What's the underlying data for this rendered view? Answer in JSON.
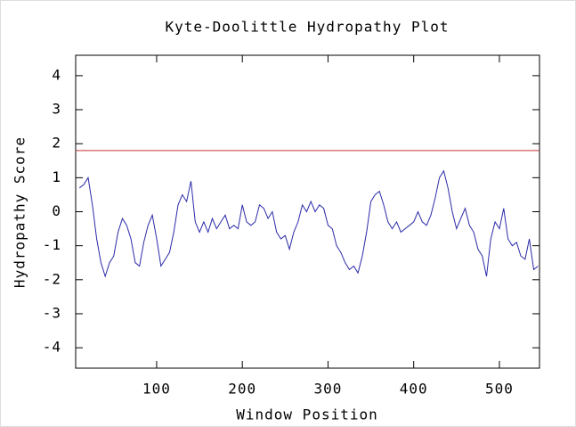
{
  "chart_data": {
    "type": "line",
    "title": "Kyte-Doolittle Hydropathy Plot",
    "xlabel": "Window Position",
    "ylabel": "Hydropathy Score",
    "x": [
      10,
      15,
      20,
      25,
      30,
      35,
      40,
      45,
      50,
      55,
      60,
      65,
      70,
      75,
      80,
      85,
      90,
      95,
      100,
      105,
      110,
      115,
      120,
      125,
      130,
      135,
      140,
      145,
      150,
      155,
      160,
      165,
      170,
      175,
      180,
      185,
      190,
      195,
      200,
      205,
      210,
      215,
      220,
      225,
      230,
      235,
      240,
      245,
      250,
      255,
      260,
      265,
      270,
      275,
      280,
      285,
      290,
      295,
      300,
      305,
      310,
      315,
      320,
      325,
      330,
      335,
      340,
      345,
      350,
      355,
      360,
      365,
      370,
      375,
      380,
      385,
      390,
      395,
      400,
      405,
      410,
      415,
      420,
      425,
      430,
      435,
      440,
      445,
      450,
      455,
      460,
      465,
      470,
      475,
      480,
      485,
      490,
      495,
      500,
      505,
      510,
      515,
      520,
      525,
      530,
      535,
      540,
      545
    ],
    "series": [
      {
        "color": "#2a2aa8",
        "values": [
          0.7,
          0.8,
          1.0,
          0.2,
          -0.8,
          -1.5,
          -1.9,
          -1.5,
          -1.3,
          -0.6,
          -0.2,
          -0.4,
          -0.8,
          -1.5,
          -1.6,
          -0.9,
          -0.4,
          -0.1,
          -0.8,
          -1.6,
          -1.4,
          -1.2,
          -0.6,
          0.2,
          0.5,
          0.3,
          0.9,
          -0.3,
          -0.6,
          -0.3,
          -0.6,
          -0.2,
          -0.5,
          -0.3,
          -0.1,
          -0.5,
          -0.4,
          -0.5,
          0.2,
          -0.3,
          -0.4,
          -0.3,
          0.2,
          0.1,
          -0.2,
          0.0,
          -0.6,
          -0.8,
          -0.7,
          -1.1,
          -0.6,
          -0.3,
          0.2,
          0.0,
          0.3,
          0.0,
          0.2,
          0.1,
          -0.4,
          -0.5,
          -1.0,
          -1.2,
          -1.5,
          -1.7,
          -1.6,
          -1.8,
          -1.3,
          -0.6,
          0.3,
          0.5,
          0.6,
          0.2,
          -0.3,
          -0.5,
          -0.3,
          -0.6,
          -0.5,
          -0.4,
          -0.3,
          0.0,
          -0.3,
          -0.4,
          -0.1,
          0.4,
          1.0,
          1.2,
          0.7,
          0.0,
          -0.5,
          -0.2,
          0.1,
          -0.4,
          -0.6,
          -1.1,
          -1.3,
          -1.9,
          -0.8,
          -0.3,
          -0.5,
          0.1,
          -0.8,
          -1.0,
          -0.9,
          -1.3,
          -1.4,
          -0.8,
          -1.7,
          -1.6
        ]
      }
    ],
    "reference_line": 1.8,
    "reference_color": "#c83232",
    "xlim": [
      5.5,
      546.8
    ],
    "ylim": [
      -4.6,
      4.6
    ],
    "xticks": [
      100,
      200,
      300,
      400,
      500
    ],
    "yticks": [
      -4,
      -3,
      -2,
      -1,
      0,
      1,
      2,
      3,
      4
    ]
  }
}
